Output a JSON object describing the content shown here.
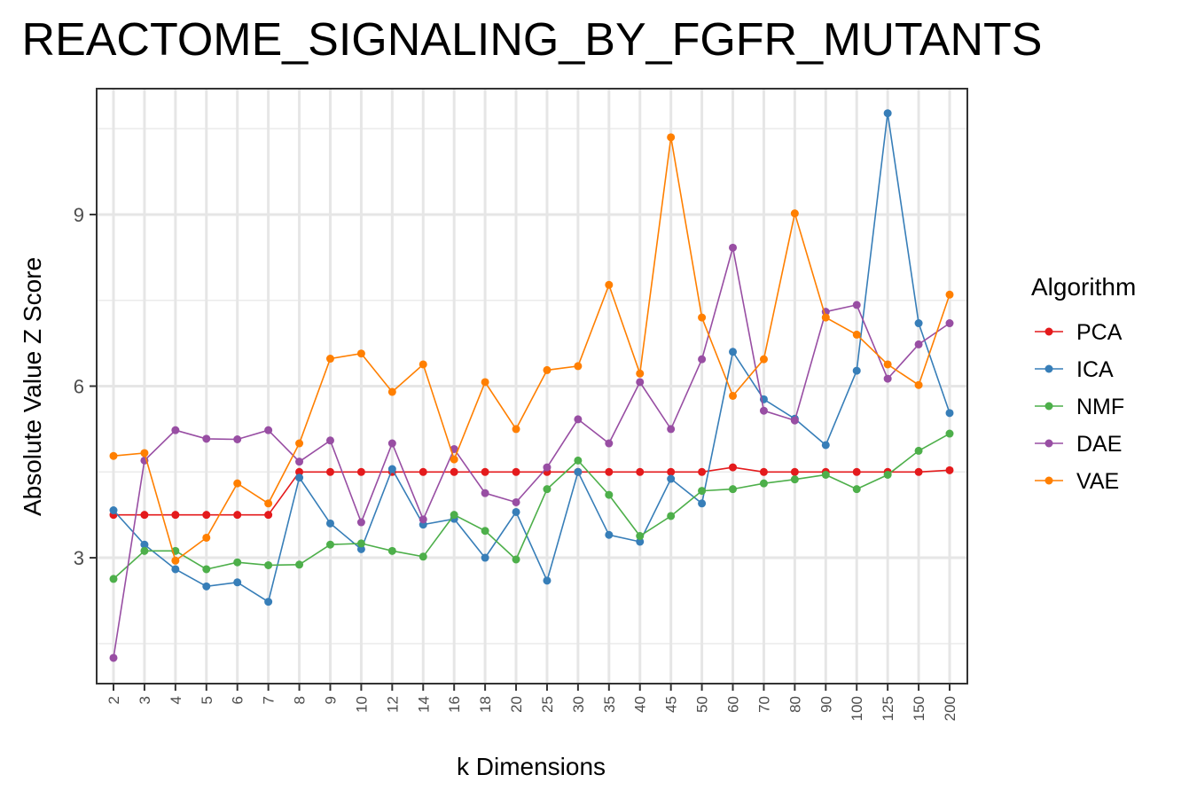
{
  "chart_data": {
    "type": "line",
    "title": "REACTOME_SIGNALING_BY_FGFR_MUTANTS",
    "xlabel": "k Dimensions",
    "ylabel": "Absolute Value Z Score",
    "categories": [
      "2",
      "3",
      "4",
      "5",
      "6",
      "7",
      "8",
      "9",
      "10",
      "12",
      "14",
      "16",
      "18",
      "20",
      "25",
      "30",
      "35",
      "40",
      "45",
      "50",
      "60",
      "70",
      "80",
      "90",
      "100",
      "125",
      "150",
      "200"
    ],
    "ylim": [
      0.8,
      11.2
    ],
    "yticks": [
      3,
      6,
      9
    ],
    "grid": true,
    "legend": {
      "title": "Algorithm",
      "position": "right"
    },
    "series": [
      {
        "name": "PCA",
        "color": "#e41a1c",
        "values": [
          3.75,
          3.75,
          3.75,
          3.75,
          3.75,
          3.75,
          4.5,
          4.5,
          4.5,
          4.5,
          4.5,
          4.5,
          4.5,
          4.5,
          4.5,
          4.5,
          4.5,
          4.5,
          4.5,
          4.5,
          4.58,
          4.5,
          4.5,
          4.5,
          4.5,
          4.5,
          4.5,
          4.53
        ]
      },
      {
        "name": "ICA",
        "color": "#377eb8",
        "values": [
          3.83,
          3.23,
          2.8,
          2.5,
          2.57,
          2.23,
          4.4,
          3.6,
          3.15,
          4.55,
          3.58,
          3.68,
          3.0,
          3.8,
          2.6,
          4.5,
          3.4,
          3.28,
          4.38,
          3.95,
          6.6,
          5.77,
          5.43,
          4.97,
          6.27,
          10.77,
          7.1,
          5.53
        ]
      },
      {
        "name": "NMF",
        "color": "#4daf4a",
        "values": [
          2.63,
          3.12,
          3.12,
          2.8,
          2.92,
          2.87,
          2.88,
          3.23,
          3.25,
          3.12,
          3.02,
          3.75,
          3.47,
          2.97,
          4.2,
          4.7,
          4.1,
          3.38,
          3.73,
          4.17,
          4.2,
          4.3,
          4.37,
          4.45,
          4.2,
          4.45,
          4.87,
          5.17
        ]
      },
      {
        "name": "DAE",
        "color": "#984ea3",
        "values": [
          1.25,
          4.7,
          5.23,
          5.08,
          5.07,
          5.23,
          4.68,
          5.05,
          3.62,
          5.0,
          3.67,
          4.9,
          4.13,
          3.97,
          4.58,
          5.42,
          5.0,
          6.07,
          5.25,
          6.47,
          8.42,
          5.57,
          5.4,
          7.3,
          7.42,
          6.13,
          6.73,
          7.1
        ]
      },
      {
        "name": "VAE",
        "color": "#ff7f00",
        "values": [
          4.78,
          4.83,
          2.95,
          3.35,
          4.3,
          3.95,
          5.0,
          6.48,
          6.57,
          5.9,
          6.38,
          4.72,
          6.07,
          5.25,
          6.28,
          6.35,
          7.77,
          6.22,
          10.35,
          7.2,
          5.83,
          6.47,
          9.02,
          7.2,
          6.9,
          6.38,
          6.02,
          7.6
        ]
      }
    ]
  }
}
